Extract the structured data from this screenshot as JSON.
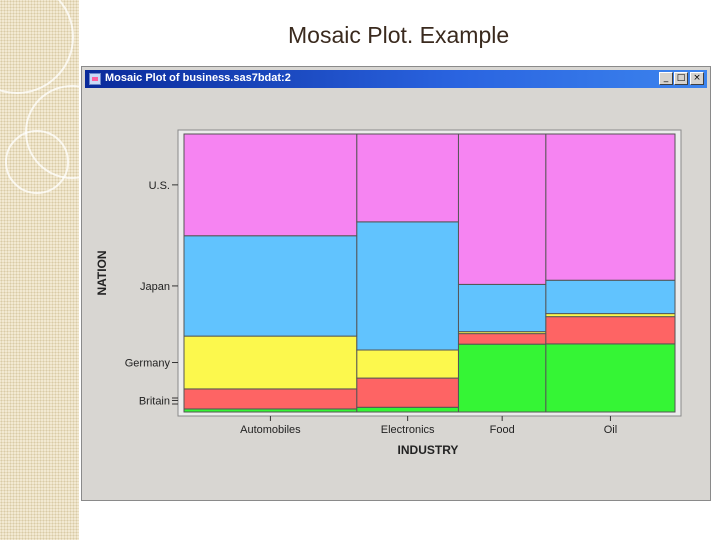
{
  "slide": {
    "title": "Mosaic Plot. Example"
  },
  "window": {
    "title": "Mosaic Plot of business.sas7bdat:2",
    "controls": {
      "minimize": "_",
      "maximize": "□",
      "close": "×"
    }
  },
  "chart_data": {
    "type": "mosaic",
    "xlabel": "INDUSTRY",
    "ylabel": "NATION",
    "categories": [
      "Automobiles",
      "Electronics",
      "Food",
      "Oil"
    ],
    "column_widths": [
      0.352,
      0.207,
      0.178,
      0.263
    ],
    "nations": [
      "U.S.",
      "Japan",
      "Germany",
      "Britain"
    ],
    "stack_order_bottom_to_top": [
      "Britain",
      "Germany",
      "Japan",
      "U.S."
    ],
    "series": [
      {
        "name": "U.S.",
        "color": "#f684f2",
        "values": [
          0.366,
          0.316,
          0.541,
          0.526
        ]
      },
      {
        "name": "Japan",
        "color": "#61c3fe",
        "values": [
          0.361,
          0.461,
          0.17,
          0.12
        ]
      },
      {
        "name": "Germany",
        "color": "#fcf84d",
        "values": [
          0.19,
          0.101,
          0.007,
          0.011
        ]
      },
      {
        "name": "Britain",
        "color": "#fe6464",
        "values": [
          0.072,
          0.105,
          0.038,
          0.098
        ]
      },
      {
        "name": "Britain-lower",
        "color": "#35f535",
        "values": [
          0.011,
          0.017,
          0.244,
          0.245
        ]
      }
    ],
    "y_tick_labels": [
      "U.S.",
      "Japan",
      "Germany",
      "Britain"
    ],
    "colors": {
      "frame": "#8a8a8a",
      "plot_background": "#d3d3d3",
      "cell_border": "#555555"
    }
  }
}
